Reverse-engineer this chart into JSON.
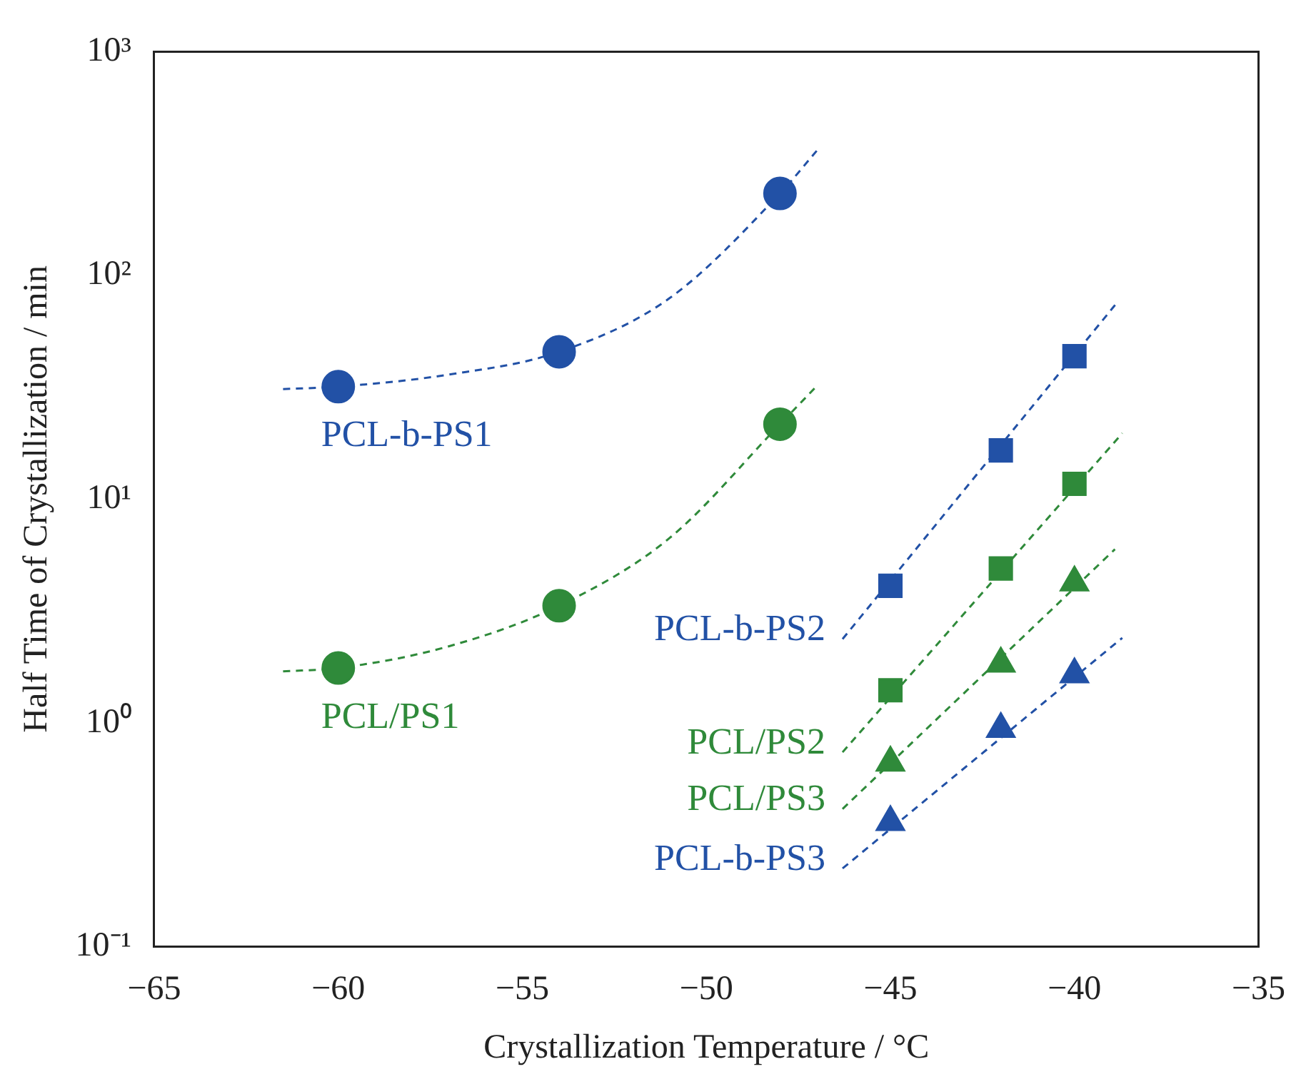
{
  "chart_data": {
    "type": "scatter",
    "xlabel": "Crystallization Temperature / °C",
    "ylabel": "Half Time of Crystallization / min",
    "log": "y",
    "xlim": [
      -65,
      -35
    ],
    "xticks": [
      -65,
      -60,
      -55,
      -50,
      -45,
      -40,
      -35
    ],
    "ylim": [
      0.1,
      1000
    ],
    "yticks": [
      {
        "value": 0.1,
        "label": "10⁻¹"
      },
      {
        "value": 1,
        "label": "10⁰"
      },
      {
        "value": 10,
        "label": "10¹"
      },
      {
        "value": 100,
        "label": "10²"
      },
      {
        "value": 1000,
        "label": "10³"
      }
    ],
    "grid": false,
    "legend": false,
    "series": [
      {
        "name": "PCL-b-PS1",
        "type": "scatter",
        "marker": "circle",
        "color": "#2251a6",
        "x": [
          -60,
          -54,
          -48
        ],
        "values": [
          31.8,
          45.5,
          232
        ]
      },
      {
        "type": "line",
        "marker": "none",
        "line_style": "dashed",
        "color": "#2251a6",
        "x": [
          -61.5,
          -60,
          -57,
          -54,
          -51,
          -48,
          -47
        ],
        "values": [
          31,
          31.8,
          36,
          45.5,
          79,
          232,
          360
        ]
      },
      {
        "name": "PCL/PS1",
        "type": "scatter",
        "marker": "circle",
        "color": "#2f8a3a",
        "x": [
          -60,
          -54,
          -48
        ],
        "values": [
          1.76,
          3.34,
          21.6
        ]
      },
      {
        "type": "line",
        "marker": "none",
        "line_style": "dashed",
        "color": "#2f8a3a",
        "x": [
          -61.5,
          -60,
          -57,
          -54,
          -51,
          -48,
          -47
        ],
        "values": [
          1.7,
          1.76,
          2.2,
          3.34,
          6.7,
          21.6,
          32
        ]
      },
      {
        "name": "PCL-b-PS2",
        "type": "scatter",
        "marker": "square",
        "color": "#2251a6",
        "x": [
          -45,
          -42,
          -40
        ],
        "values": [
          4.1,
          16.5,
          43.5
        ]
      },
      {
        "type": "line",
        "marker": "none",
        "line_style": "dashed",
        "color": "#2251a6",
        "x": [
          -46.3,
          -38.8
        ],
        "values": [
          2.37,
          77
        ]
      },
      {
        "name": "PCL/PS2",
        "type": "scatter",
        "marker": "square",
        "color": "#2f8a3a",
        "x": [
          -45,
          -42,
          -40
        ],
        "values": [
          1.4,
          4.9,
          11.7
        ]
      },
      {
        "type": "line",
        "marker": "none",
        "line_style": "dashed",
        "color": "#2f8a3a",
        "x": [
          -46.3,
          -38.7
        ],
        "values": [
          0.74,
          19.7
        ]
      },
      {
        "name": "PCL/PS3",
        "type": "scatter",
        "marker": "triangle",
        "color": "#2f8a3a",
        "x": [
          -45,
          -42,
          -40
        ],
        "values": [
          0.665,
          1.84,
          4.24
        ]
      },
      {
        "type": "line",
        "marker": "none",
        "line_style": "dashed",
        "color": "#2f8a3a",
        "x": [
          -46.3,
          -38.9
        ],
        "values": [
          0.413,
          5.97
        ]
      },
      {
        "name": "PCL-b-PS3",
        "type": "scatter",
        "marker": "triangle",
        "color": "#2251a6",
        "x": [
          -45,
          -42,
          -40
        ],
        "values": [
          0.361,
          0.94,
          1.65
        ]
      },
      {
        "type": "line",
        "marker": "none",
        "line_style": "dashed",
        "color": "#2251a6",
        "x": [
          -46.3,
          -38.7
        ],
        "values": [
          0.224,
          2.4
        ]
      }
    ]
  }
}
